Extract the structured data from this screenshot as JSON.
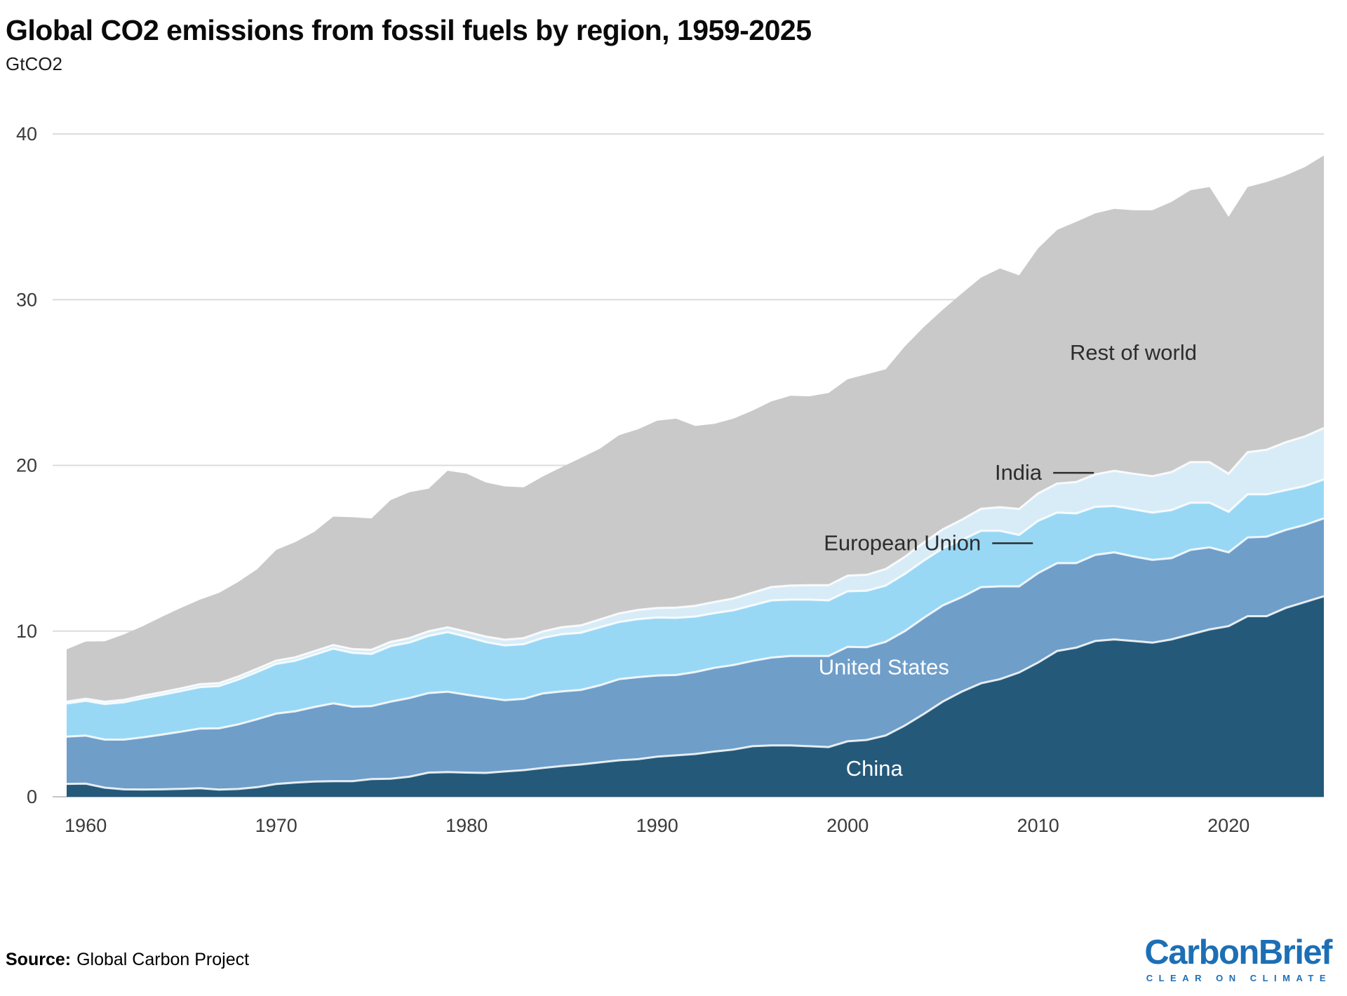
{
  "header": {
    "title": "Global CO2 emissions from fossil fuels by region, 1959-2025",
    "subtitle": "GtCO2"
  },
  "footer": {
    "source_label": "Source:",
    "source_text": "Global Carbon Project",
    "logo_text": "CarbonBrief",
    "logo_tagline": "CLEAR ON CLIMATE",
    "logo_color": "#1d6fb5"
  },
  "chart_data": {
    "type": "area",
    "stacked": true,
    "title": "Global CO2 emissions from fossil fuels by region, 1959-2025",
    "ylabel": "GtCO2",
    "xlabel": "",
    "ylim": [
      0,
      40
    ],
    "yticks": [
      0,
      10,
      20,
      30,
      40
    ],
    "xticks": [
      1960,
      1970,
      1980,
      1990,
      2000,
      2010,
      2020
    ],
    "grid": true,
    "legend_position": "inline-labels",
    "axis_text_color": "#3a3a3a",
    "gridline_color": "#dcdcdc",
    "x": [
      1959,
      1960,
      1961,
      1962,
      1963,
      1964,
      1965,
      1966,
      1967,
      1968,
      1969,
      1970,
      1971,
      1972,
      1973,
      1974,
      1975,
      1976,
      1977,
      1978,
      1979,
      1980,
      1981,
      1982,
      1983,
      1984,
      1985,
      1986,
      1987,
      1988,
      1989,
      1990,
      1991,
      1992,
      1993,
      1994,
      1995,
      1996,
      1997,
      1998,
      1999,
      2000,
      2001,
      2002,
      2003,
      2004,
      2005,
      2006,
      2007,
      2008,
      2009,
      2010,
      2011,
      2012,
      2013,
      2014,
      2015,
      2016,
      2017,
      2018,
      2019,
      2020,
      2021,
      2022,
      2023,
      2024,
      2025
    ],
    "series": [
      {
        "name": "China",
        "color": "#25597a",
        "values": [
          0.78,
          0.79,
          0.55,
          0.45,
          0.44,
          0.45,
          0.48,
          0.52,
          0.43,
          0.47,
          0.58,
          0.77,
          0.86,
          0.92,
          0.94,
          0.94,
          1.07,
          1.09,
          1.21,
          1.46,
          1.49,
          1.46,
          1.44,
          1.53,
          1.61,
          1.74,
          1.86,
          1.95,
          2.08,
          2.2,
          2.27,
          2.42,
          2.5,
          2.58,
          2.73,
          2.85,
          3.05,
          3.1,
          3.1,
          3.05,
          3.0,
          3.35,
          3.43,
          3.7,
          4.3,
          5.0,
          5.75,
          6.35,
          6.85,
          7.1,
          7.5,
          8.1,
          8.8,
          9.0,
          9.4,
          9.5,
          9.4,
          9.3,
          9.5,
          9.8,
          10.1,
          10.3,
          10.9,
          10.9,
          11.4,
          11.75,
          12.1
        ]
      },
      {
        "name": "United States",
        "color": "#6f9ec9",
        "values": [
          2.85,
          2.9,
          2.9,
          3.0,
          3.15,
          3.3,
          3.45,
          3.6,
          3.7,
          3.9,
          4.1,
          4.25,
          4.3,
          4.5,
          4.7,
          4.5,
          4.4,
          4.65,
          4.75,
          4.8,
          4.85,
          4.7,
          4.55,
          4.3,
          4.3,
          4.5,
          4.5,
          4.5,
          4.65,
          4.9,
          4.95,
          4.9,
          4.85,
          4.95,
          5.05,
          5.1,
          5.15,
          5.3,
          5.4,
          5.45,
          5.5,
          5.7,
          5.6,
          5.65,
          5.7,
          5.8,
          5.8,
          5.7,
          5.8,
          5.6,
          5.2,
          5.4,
          5.3,
          5.1,
          5.2,
          5.25,
          5.1,
          5.0,
          4.9,
          5.1,
          4.95,
          4.45,
          4.75,
          4.8,
          4.7,
          4.65,
          4.7
        ]
      },
      {
        "name": "European Union",
        "color": "#99d8f5",
        "values": [
          2.0,
          2.1,
          2.15,
          2.25,
          2.35,
          2.4,
          2.45,
          2.5,
          2.55,
          2.7,
          2.85,
          3.0,
          3.05,
          3.15,
          3.3,
          3.25,
          3.15,
          3.35,
          3.35,
          3.45,
          3.6,
          3.5,
          3.35,
          3.3,
          3.3,
          3.35,
          3.45,
          3.45,
          3.5,
          3.45,
          3.5,
          3.5,
          3.45,
          3.35,
          3.3,
          3.3,
          3.35,
          3.45,
          3.4,
          3.4,
          3.35,
          3.35,
          3.4,
          3.4,
          3.45,
          3.45,
          3.45,
          3.45,
          3.4,
          3.35,
          3.1,
          3.15,
          3.05,
          3.0,
          2.9,
          2.8,
          2.85,
          2.85,
          2.9,
          2.85,
          2.7,
          2.45,
          2.6,
          2.55,
          2.4,
          2.35,
          2.35
        ]
      },
      {
        "name": "India",
        "color": "#d8ecf8",
        "values": [
          0.12,
          0.13,
          0.14,
          0.15,
          0.16,
          0.16,
          0.17,
          0.18,
          0.18,
          0.19,
          0.2,
          0.2,
          0.21,
          0.22,
          0.22,
          0.23,
          0.25,
          0.26,
          0.27,
          0.28,
          0.29,
          0.3,
          0.33,
          0.35,
          0.37,
          0.39,
          0.43,
          0.45,
          0.48,
          0.52,
          0.56,
          0.58,
          0.62,
          0.65,
          0.68,
          0.72,
          0.77,
          0.81,
          0.85,
          0.87,
          0.92,
          0.95,
          0.97,
          1.0,
          1.03,
          1.1,
          1.15,
          1.23,
          1.33,
          1.43,
          1.57,
          1.66,
          1.76,
          1.9,
          1.96,
          2.13,
          2.15,
          2.2,
          2.3,
          2.45,
          2.45,
          2.3,
          2.55,
          2.7,
          2.9,
          3.0,
          3.1
        ]
      },
      {
        "name": "Rest of world",
        "color": "#c9c9c9",
        "values": [
          3.15,
          3.45,
          3.65,
          3.95,
          4.2,
          4.55,
          4.85,
          5.1,
          5.45,
          5.7,
          6.0,
          6.68,
          6.95,
          7.2,
          7.75,
          7.95,
          7.93,
          8.55,
          8.8,
          8.6,
          9.45,
          9.54,
          9.3,
          9.25,
          9.1,
          9.35,
          9.66,
          10.1,
          10.3,
          10.75,
          10.9,
          11.3,
          11.4,
          10.85,
          10.75,
          10.85,
          10.98,
          11.2,
          11.45,
          11.4,
          11.6,
          11.85,
          12.1,
          12.05,
          12.7,
          13.0,
          13.25,
          13.65,
          13.95,
          14.4,
          14.1,
          14.79,
          15.3,
          15.7,
          15.75,
          15.8,
          15.9,
          16.05,
          16.3,
          16.4,
          16.6,
          15.5,
          16.0,
          16.15,
          16.1,
          16.25,
          16.45
        ]
      }
    ],
    "annotations": [
      {
        "text": "Rest of world",
        "year": 2015.0,
        "value": 26.8,
        "color": "#2d2d2d",
        "anchor": "middle",
        "dash": false
      },
      {
        "text": "India",
        "year": 2010.2,
        "value": 19.55,
        "color": "#2d2d2d",
        "anchor": "end",
        "dash": true
      },
      {
        "text": "European Union",
        "year": 2007.0,
        "value": 15.3,
        "color": "#2d2d2d",
        "anchor": "end",
        "dash": true
      },
      {
        "text": "United States",
        "year": 2001.9,
        "value": 7.8,
        "color": "#ffffff",
        "anchor": "middle",
        "dash": false
      },
      {
        "text": "China",
        "year": 2001.4,
        "value": 1.7,
        "color": "#ffffff",
        "anchor": "middle",
        "dash": false
      }
    ]
  }
}
